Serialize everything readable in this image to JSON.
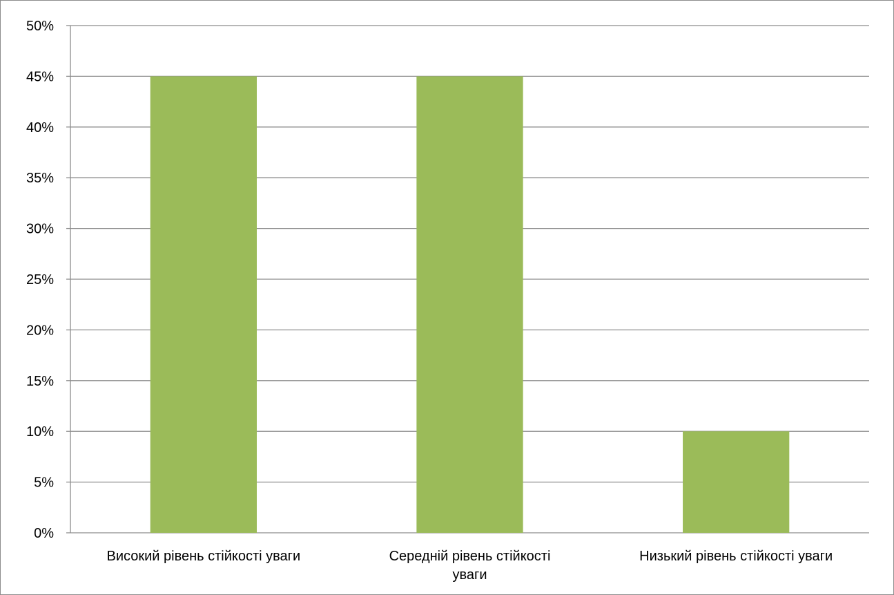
{
  "chart_data": {
    "type": "bar",
    "title": "",
    "xlabel": "",
    "ylabel": "",
    "categories": [
      [
        "Високий рівень стійкості уваги"
      ],
      [
        "Середній рівень стійкості",
        "уваги"
      ],
      [
        "Низький рівень стійкості уваги"
      ]
    ],
    "values": [
      0.45,
      0.45,
      0.1
    ],
    "ylim": [
      0,
      0.5
    ],
    "yticks": [
      "0%",
      "5%",
      "10%",
      "15%",
      "20%",
      "25%",
      "30%",
      "35%",
      "40%",
      "45%",
      "50%"
    ],
    "grid": true,
    "legend": "none",
    "bar_color": "#9BBB59",
    "grid_color": "#8c8c8c"
  }
}
